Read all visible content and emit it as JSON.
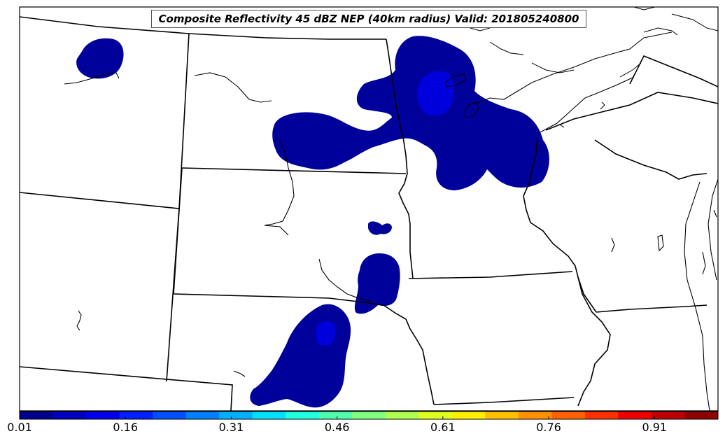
{
  "title": "Composite Reflectivity 45 dBZ NEP (40km radius) Valid: 201805240800",
  "colorbar": {
    "min": 0.01,
    "max": 1.0,
    "colors": [
      "#00008f",
      "#0000bf",
      "#0000ef",
      "#0020ff",
      "#0050ff",
      "#0080ff",
      "#00b0ff",
      "#00e0ff",
      "#20ffdf",
      "#50ffaf",
      "#80ff80",
      "#afff50",
      "#dfff20",
      "#ffef00",
      "#ffc000",
      "#ff9000",
      "#ff6000",
      "#ff3000",
      "#ef0000",
      "#bf0000",
      "#8f0000"
    ],
    "ticks": [
      "0.01",
      "0.16",
      "0.31",
      "0.46",
      "0.61",
      "0.76",
      "0.91"
    ]
  },
  "probability_colors": {
    "low": "#00009a",
    "mid": "#0000dd"
  }
}
